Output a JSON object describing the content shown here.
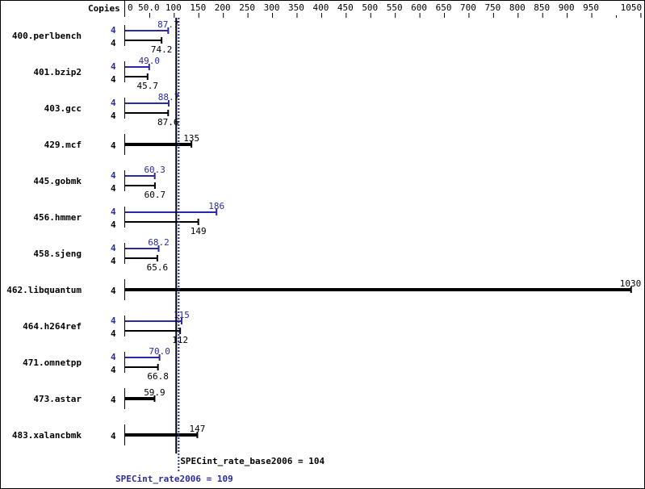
{
  "chart_data": {
    "type": "bar",
    "orientation": "horizontal",
    "axis_label": "Copies",
    "xlim": [
      0,
      1050
    ],
    "ticks": [
      "0",
      "50.0",
      "100",
      "150",
      "200",
      "250",
      "300",
      "350",
      "400",
      "450",
      "500",
      "550",
      "600",
      "650",
      "700",
      "750",
      "800",
      "850",
      "900",
      "950",
      "1050"
    ],
    "tick_values": [
      0,
      50,
      100,
      150,
      200,
      250,
      300,
      350,
      400,
      450,
      500,
      550,
      600,
      650,
      700,
      750,
      800,
      850,
      900,
      950,
      1050
    ],
    "colors": {
      "peak": "#2a2aa6",
      "base": "#000000"
    },
    "benchmarks": [
      {
        "name": "400.perlbench",
        "peak_copies": "4",
        "peak": 87.7,
        "peak_label": "87.7",
        "base_copies": "4",
        "base": 74.2,
        "base_label": "74.2"
      },
      {
        "name": "401.bzip2",
        "peak_copies": "4",
        "peak": 49.0,
        "peak_label": "49.0",
        "base_copies": "4",
        "base": 45.7,
        "base_label": "45.7"
      },
      {
        "name": "403.gcc",
        "peak_copies": "4",
        "peak": 88.7,
        "peak_label": "88.7",
        "base_copies": "4",
        "base": 87.6,
        "base_label": "87.6"
      },
      {
        "name": "429.mcf",
        "base_copies": "4",
        "base": 135,
        "base_label": "135"
      },
      {
        "name": "445.gobmk",
        "peak_copies": "4",
        "peak": 60.3,
        "peak_label": "60.3",
        "base_copies": "4",
        "base": 60.7,
        "base_label": "60.7"
      },
      {
        "name": "456.hmmer",
        "peak_copies": "4",
        "peak": 186,
        "peak_label": "186",
        "base_copies": "4",
        "base": 149,
        "base_label": "149"
      },
      {
        "name": "458.sjeng",
        "peak_copies": "4",
        "peak": 68.2,
        "peak_label": "68.2",
        "base_copies": "4",
        "base": 65.6,
        "base_label": "65.6"
      },
      {
        "name": "462.libquantum",
        "base_copies": "4",
        "base": 1030,
        "base_label": "1030"
      },
      {
        "name": "464.h264ref",
        "peak_copies": "4",
        "peak": 115,
        "peak_label": "115",
        "base_copies": "4",
        "base": 112,
        "base_label": "112"
      },
      {
        "name": "471.omnetpp",
        "peak_copies": "4",
        "peak": 70.0,
        "peak_label": "70.0",
        "base_copies": "4",
        "base": 66.8,
        "base_label": "66.8"
      },
      {
        "name": "473.astar",
        "base_copies": "4",
        "base": 59.9,
        "base_label": "59.9"
      },
      {
        "name": "483.xalancbmk",
        "base_copies": "4",
        "base": 147,
        "base_label": "147"
      }
    ],
    "base_summary": {
      "label": "SPECint_rate_base2006 = 104",
      "value": 104
    },
    "peak_summary": {
      "label": "SPECint_rate2006 = 109",
      "value": 109
    }
  }
}
